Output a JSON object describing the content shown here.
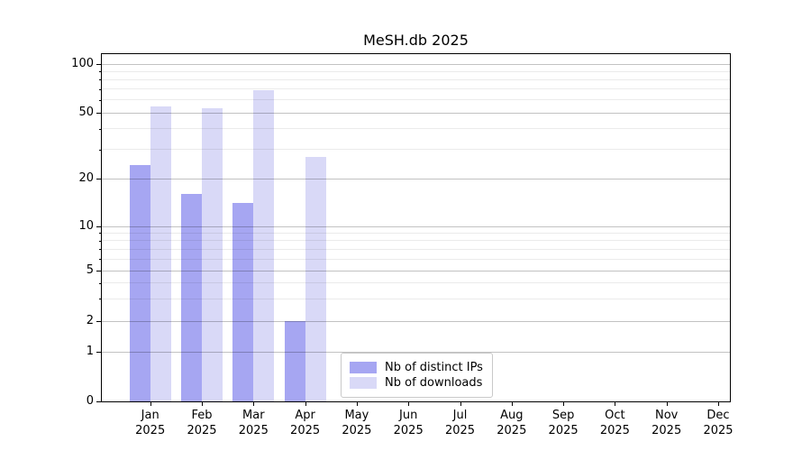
{
  "chart_data": {
    "type": "bar",
    "title": "MeSH.db 2025",
    "year_label": "2025",
    "categories": [
      "Jan",
      "Feb",
      "Mar",
      "Apr",
      "May",
      "Jun",
      "Jul",
      "Aug",
      "Sep",
      "Oct",
      "Nov",
      "Dec"
    ],
    "series": [
      {
        "name": "Nb of distinct IPs",
        "color": "#a6a6f2",
        "values": [
          24,
          16,
          14,
          2,
          0,
          0,
          0,
          0,
          0,
          0,
          0,
          0
        ]
      },
      {
        "name": "Nb of downloads",
        "color": "#d9d9f7",
        "values": [
          55,
          53,
          69,
          27,
          0,
          0,
          0,
          0,
          0,
          0,
          0,
          0
        ]
      }
    ],
    "yscale": "symlog",
    "ylim": [
      0,
      115
    ],
    "y_major_ticks": [
      100,
      50,
      20,
      10,
      5,
      2,
      1,
      0
    ],
    "y_minor_ticks": [
      3,
      4,
      6,
      7,
      8,
      9,
      30,
      40,
      60,
      70,
      80,
      90
    ],
    "grid": true,
    "legend_position": "lower center",
    "colors": {
      "spine": "#000000",
      "major_grid": "#c2c2c2",
      "minor_grid": "#ececec",
      "background": "#ffffff"
    }
  }
}
